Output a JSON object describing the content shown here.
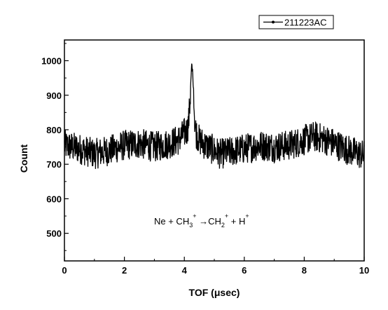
{
  "chart_data": {
    "type": "line",
    "xlabel": "TOF (μsec)",
    "ylabel": "Count",
    "xlim": [
      0,
      10
    ],
    "ylim": [
      420,
      1060
    ],
    "x_ticks": [
      0,
      2,
      4,
      6,
      8,
      10
    ],
    "x_tick_labels": [
      "0",
      "2",
      "4",
      "6",
      "8",
      "10"
    ],
    "y_ticks": [
      500,
      600,
      700,
      800,
      900,
      1000
    ],
    "y_tick_labels": [
      "500",
      "600",
      "700",
      "800",
      "900",
      "1000"
    ],
    "grid": false,
    "legend_position": "top-right",
    "series": [
      {
        "name": "211223AC",
        "color": "#000000",
        "marker": "dot",
        "x": [
          0.0,
          0.5,
          1.0,
          1.5,
          2.0,
          2.5,
          3.0,
          3.5,
          3.8,
          4.0,
          4.1,
          4.15,
          4.2,
          4.25,
          4.3,
          4.35,
          4.4,
          4.5,
          4.7,
          5.0,
          5.2,
          5.5,
          6.0,
          6.5,
          7.0,
          7.5,
          8.0,
          8.3,
          8.6,
          9.0,
          9.5,
          10.0
        ],
        "y": [
          755,
          745,
          730,
          740,
          755,
          760,
          750,
          760,
          770,
          790,
          800,
          830,
          900,
          990,
          920,
          820,
          790,
          770,
          755,
          740,
          730,
          735,
          745,
          755,
          750,
          755,
          770,
          780,
          775,
          760,
          740,
          725
        ]
      }
    ],
    "annotation": {
      "segments": [
        {
          "text": "Ne + CH"
        },
        {
          "text": "3",
          "role": "sub"
        },
        {
          "text": "+",
          "role": "sup"
        },
        {
          "text": " →CH"
        },
        {
          "text": "2",
          "role": "sub"
        },
        {
          "text": "+",
          "role": "sup"
        },
        {
          "text": " + H"
        },
        {
          "text": "+",
          "role": "sup"
        }
      ]
    },
    "noise_amplitude": 45
  }
}
